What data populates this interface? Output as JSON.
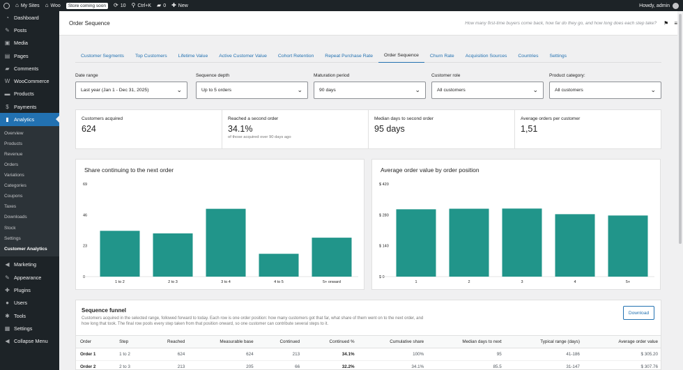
{
  "adminbar": {
    "my_sites": "My Sites",
    "site": "Woo",
    "badge": "Store coming soon",
    "updates": "10",
    "search": "Ctrl+K",
    "comments": "0",
    "new": "New",
    "howdy": "Howdy, admin"
  },
  "sidebar": {
    "items": [
      {
        "label": "Dashboard",
        "icon": "dashboard-icon",
        "glyph": "◔"
      },
      {
        "label": "Posts",
        "icon": "pin-icon",
        "glyph": "✎"
      },
      {
        "label": "Media",
        "icon": "media-icon",
        "glyph": "▣"
      },
      {
        "label": "Pages",
        "icon": "pages-icon",
        "glyph": "▤"
      },
      {
        "label": "Comments",
        "icon": "comment-icon",
        "glyph": "▰"
      },
      {
        "label": "WooCommerce",
        "icon": "woo-icon",
        "glyph": "W"
      },
      {
        "label": "Products",
        "icon": "archive-icon",
        "glyph": "▬"
      },
      {
        "label": "Payments",
        "icon": "dollar-icon",
        "glyph": "$"
      },
      {
        "label": "Analytics",
        "icon": "chart-icon",
        "glyph": "▮"
      }
    ],
    "submenu": [
      "Overview",
      "Products",
      "Revenue",
      "Orders",
      "Variations",
      "Categories",
      "Coupons",
      "Taxes",
      "Downloads",
      "Stock",
      "Settings",
      "Customer Analytics"
    ],
    "lower_items": [
      {
        "label": "Marketing",
        "icon": "megaphone-icon",
        "glyph": "◀"
      },
      {
        "label": "Appearance",
        "icon": "brush-icon",
        "glyph": "✎"
      },
      {
        "label": "Plugins",
        "icon": "plugin-icon",
        "glyph": "✚"
      },
      {
        "label": "Users",
        "icon": "users-icon",
        "glyph": "●"
      },
      {
        "label": "Tools",
        "icon": "wrench-icon",
        "glyph": "✱"
      },
      {
        "label": "Settings",
        "icon": "settings-icon",
        "glyph": "▦"
      },
      {
        "label": "Collapse Menu",
        "icon": "collapse-icon",
        "glyph": "◀"
      }
    ]
  },
  "header": {
    "title": "Order Sequence",
    "hint": "How many first-time buyers come back, how far do they go, and how long does each step take?"
  },
  "tabs": [
    "Customer Segments",
    "Top Customers",
    "Lifetime Value",
    "Active Customer Value",
    "Cohort Retention",
    "Repeat Purchase Rate",
    "Order Sequence",
    "Churn Rate",
    "Acquisition Sources",
    "Countries",
    "Settings"
  ],
  "active_tab": "Order Sequence",
  "filters": [
    {
      "label": "Date range",
      "value": "Last year (Jan 1 - Dec 31, 2025)"
    },
    {
      "label": "Sequence depth",
      "value": "Up to 5 orders"
    },
    {
      "label": "Maturation period",
      "value": "90 days"
    },
    {
      "label": "Customer role",
      "value": "All customers"
    },
    {
      "label": "Product category:",
      "value": "All customers"
    }
  ],
  "kpis": [
    {
      "label": "Customers acquired",
      "value": "624",
      "sub": ""
    },
    {
      "label": "Reached a second order",
      "value": "34.1%",
      "sub": "of those acquired over 90 days ago"
    },
    {
      "label": "Median days to second order",
      "value": "95 days",
      "sub": ""
    },
    {
      "label": "Average orders per customer",
      "value": "1,51",
      "sub": ""
    }
  ],
  "colors": {
    "bar": "#21958a",
    "accent": "#2271b1",
    "sidebar": "#1d2327"
  },
  "chart_data": [
    {
      "type": "bar",
      "title": "Share continuing to the next order",
      "categories": [
        "1 to 2",
        "2 to 3",
        "3 to 4",
        "4 to 5",
        "5+ onward"
      ],
      "values": [
        34.1,
        32.2,
        50.5,
        17,
        29
      ],
      "ylim": [
        0,
        69
      ],
      "yticks": [
        0,
        23,
        46,
        69
      ],
      "ytick_labels": [
        "0",
        "23",
        "46",
        "69"
      ],
      "grid": false
    },
    {
      "type": "bar",
      "title": "Average order value by order position",
      "categories": [
        "1",
        "2",
        "3",
        "4",
        "5+"
      ],
      "values": [
        305.2,
        307.76,
        308.5,
        283,
        277
      ],
      "ylim": [
        0,
        420
      ],
      "yticks": [
        0,
        140,
        280,
        420
      ],
      "ytick_labels": [
        "$ 0",
        "$ 140",
        "$ 280",
        "$ 420"
      ],
      "grid": false
    }
  ],
  "funnel": {
    "title": "Sequence funnel",
    "description": "Customers acquired in the selected range, followed forward to today. Each row is one order position: how many customers got that far, what share of them went on to the next order, and how long that took. The final row pools every step taken from that position onward, so one customer can contribute several steps to it.",
    "download": "Download",
    "columns": [
      "Order",
      "Step",
      "Reached",
      "Measurable base",
      "Continued",
      "Continued %",
      "Cumulative share",
      "Median days to next",
      "Typical range (days)",
      "Average order value"
    ],
    "rows": [
      [
        "Order 1",
        "1 to 2",
        "624",
        "624",
        "213",
        "34.1%",
        "100%",
        "95",
        "41-186",
        "$ 305.20"
      ],
      [
        "Order 2",
        "2 to 3",
        "213",
        "205",
        "66",
        "32.2%",
        "34.1%",
        "85.5",
        "31-147",
        "$ 307.76"
      ]
    ]
  }
}
